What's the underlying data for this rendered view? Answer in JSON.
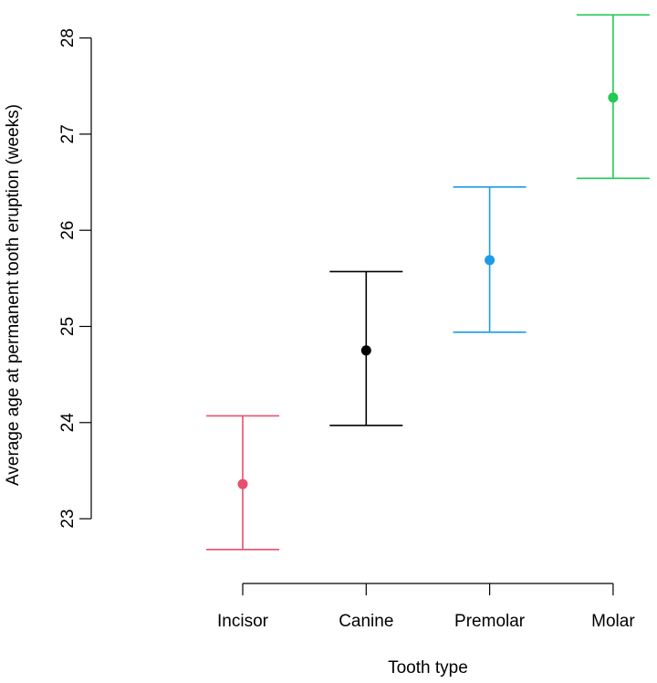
{
  "chart_data": {
    "type": "errorbar",
    "title": "",
    "xlabel": "Tooth type",
    "ylabel": "Average age at permanent tooth eruption (weeks)",
    "ylim": [
      22.45,
      28.3
    ],
    "y_ticks": [
      23,
      24,
      25,
      26,
      27,
      28
    ],
    "categories": [
      "Incisor",
      "Canine",
      "Premolar",
      "Molar"
    ],
    "series": [
      {
        "name": "Incisor",
        "mean": 23.36,
        "lower": 22.68,
        "upper": 24.07,
        "color": "#e8506e"
      },
      {
        "name": "Canine",
        "mean": 24.75,
        "lower": 23.97,
        "upper": 25.57,
        "color": "#000000"
      },
      {
        "name": "Premolar",
        "mean": 25.69,
        "lower": 24.94,
        "upper": 26.45,
        "color": "#1e9be6"
      },
      {
        "name": "Molar",
        "mean": 27.38,
        "lower": 26.54,
        "upper": 28.24,
        "color": "#22c955"
      }
    ]
  }
}
